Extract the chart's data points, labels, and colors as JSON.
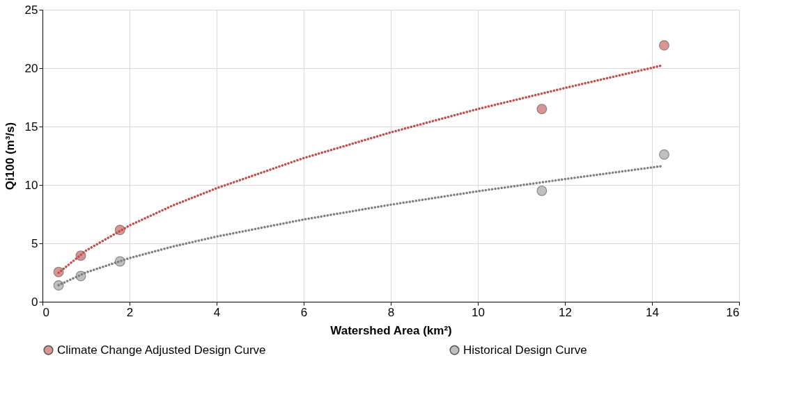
{
  "chart_data": {
    "type": "scatter",
    "xlabel": "Watershed Area (km²)",
    "ylabel": "Qi100 (m³/s)",
    "xlim": [
      0,
      16
    ],
    "xticks": [
      0,
      2,
      4,
      6,
      8,
      10,
      12,
      14,
      16
    ],
    "ylim": [
      0,
      25
    ],
    "yticks": [
      0,
      5,
      10,
      15,
      20,
      25
    ],
    "grid": true,
    "legend": "bottom",
    "series": [
      {
        "name": "Climate Change Adjusted Design Curve",
        "marker": "circle",
        "color": "#d99594",
        "x": [
          0.37,
          0.88,
          1.78,
          11.47,
          14.28
        ],
        "values": [
          2.55,
          3.95,
          6.15,
          16.5,
          21.95
        ]
      },
      {
        "name": "Historical Design Curve",
        "marker": "circle",
        "color": "#bfbfbf",
        "x": [
          0.37,
          0.88,
          1.78,
          11.47,
          14.28
        ],
        "values": [
          1.4,
          2.2,
          3.45,
          9.5,
          12.6
        ]
      },
      {
        "type": "line",
        "line_style": "dotted",
        "color": "#c0504d",
        "x": [
          0.37,
          1,
          2,
          3,
          4,
          6,
          8,
          10,
          12,
          14.2
        ],
        "values": [
          2.47,
          4.38,
          6.53,
          8.25,
          9.72,
          12.3,
          14.5,
          16.5,
          18.3,
          20.2
        ]
      },
      {
        "type": "line",
        "line_style": "dotted",
        "color": "#808080",
        "x": [
          0.37,
          1,
          2,
          3,
          4,
          6,
          8,
          10,
          12,
          14.2
        ],
        "values": [
          1.42,
          2.51,
          3.74,
          4.73,
          5.58,
          7.04,
          8.31,
          9.46,
          10.5,
          11.6
        ]
      }
    ]
  }
}
